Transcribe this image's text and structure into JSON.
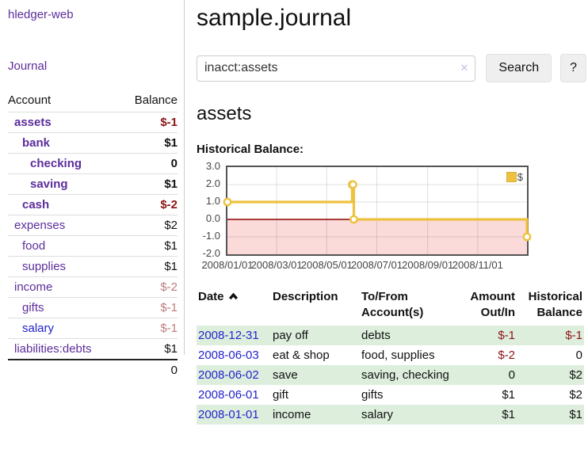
{
  "colors": {
    "link_purple": "#5c2d9c",
    "link_blue": "#2323cc",
    "negative_strong": "#8b1515",
    "negative_soft": "#bd7b7b",
    "row_green": "#ddeedd",
    "chart_line": "#edc240",
    "chart_zero_line": "#8b0000",
    "chart_negative_fill": "#fbdada",
    "chart_border": "#545454"
  },
  "brand": {
    "label": "hledger-web"
  },
  "nav": {
    "journal": "Journal"
  },
  "sidebar": {
    "headers": {
      "account": "Account",
      "balance": "Balance"
    },
    "accounts": [
      {
        "name": "assets",
        "balance": "$-1",
        "indent": 1,
        "bold": true,
        "name_color": "purple",
        "balance_color": "negative_strong"
      },
      {
        "name": "bank",
        "balance": "$1",
        "indent": 2,
        "bold": true,
        "name_color": "purple",
        "balance_color": "normal"
      },
      {
        "name": "checking",
        "balance": "0",
        "indent": 3,
        "bold": true,
        "name_color": "purple",
        "balance_color": "normal"
      },
      {
        "name": "saving",
        "balance": "$1",
        "indent": 3,
        "bold": true,
        "name_color": "purple",
        "balance_color": "normal"
      },
      {
        "name": "cash",
        "balance": "$-2",
        "indent": 2,
        "bold": true,
        "name_color": "purple",
        "balance_color": "negative_strong"
      },
      {
        "name": "expenses",
        "balance": "$2",
        "indent": 1,
        "bold": false,
        "name_color": "purple",
        "balance_color": "normal"
      },
      {
        "name": "food",
        "balance": "$1",
        "indent": 2,
        "bold": false,
        "name_color": "purple",
        "balance_color": "normal"
      },
      {
        "name": "supplies",
        "balance": "$1",
        "indent": 2,
        "bold": false,
        "name_color": "purple",
        "balance_color": "normal"
      },
      {
        "name": "income",
        "balance": "$-2",
        "indent": 1,
        "bold": false,
        "name_color": "purple",
        "balance_color": "negative_soft"
      },
      {
        "name": "gifts",
        "balance": "$-1",
        "indent": 2,
        "bold": false,
        "name_color": "purple",
        "balance_color": "negative_soft"
      },
      {
        "name": "salary",
        "balance": "$-1",
        "indent": 2,
        "bold": false,
        "name_color": "blue",
        "balance_color": "negative_soft"
      },
      {
        "name": "liabilities:debts",
        "balance": "$1",
        "indent": 1,
        "bold": false,
        "name_color": "purple",
        "balance_color": "normal"
      }
    ],
    "total": "0"
  },
  "main": {
    "title": "sample.journal",
    "search": {
      "value": "inacct:assets",
      "clear": "✕",
      "button": "Search",
      "help": "?"
    },
    "account_heading": "assets",
    "section_heading": "Historical Balance:"
  },
  "chart_data": {
    "type": "line",
    "mode": "steps",
    "title": "Historical Balance of assets",
    "series": [
      {
        "name": "$",
        "color": "#edc240",
        "points": [
          [
            "2008-01-01",
            1
          ],
          [
            "2008-06-01",
            2
          ],
          [
            "2008-06-02",
            2
          ],
          [
            "2008-06-03",
            0
          ],
          [
            "2008-12-31",
            -1
          ]
        ]
      }
    ],
    "x_range": [
      "2008-01-01",
      "2008-12-31"
    ],
    "x_ticks": [
      "2008/01/01",
      "2008/03/01",
      "2008/05/01",
      "2008/07/01",
      "2008/09/01",
      "2008/11/01"
    ],
    "y_ticks": [
      3.0,
      2.0,
      1.0,
      0.0,
      -1.0,
      -2.0
    ],
    "y_tick_labels": [
      "3.0",
      "2.0",
      "1.0",
      "0.0",
      "-1.0",
      "-2.0"
    ],
    "ylim": [
      -2,
      3
    ],
    "legend": {
      "label": "$",
      "position": "top-right"
    },
    "grid": true,
    "negative_region_shaded": true
  },
  "register": {
    "headers": {
      "date": "Date",
      "description": "Description",
      "accounts": "To/From Account(s)",
      "amount": "Amount Out/In",
      "balance": "Historical Balance"
    },
    "sort": {
      "column": "Date",
      "direction": "asc"
    },
    "rows": [
      {
        "date": "2008-12-31",
        "description": "pay off",
        "accounts": "debts",
        "amount": "$-1",
        "amount_negative": true,
        "balance": "$-1",
        "balance_negative": true
      },
      {
        "date": "2008-06-03",
        "description": "eat & shop",
        "accounts": "food, supplies",
        "amount": "$-2",
        "amount_negative": true,
        "balance": "0",
        "balance_negative": false
      },
      {
        "date": "2008-06-02",
        "description": "save",
        "accounts": "saving, checking",
        "amount": "0",
        "amount_negative": false,
        "balance": "$2",
        "balance_negative": false
      },
      {
        "date": "2008-06-01",
        "description": "gift",
        "accounts": "gifts",
        "amount": "$1",
        "amount_negative": false,
        "balance": "$2",
        "balance_negative": false
      },
      {
        "date": "2008-01-01",
        "description": "income",
        "accounts": "salary",
        "amount": "$1",
        "amount_negative": false,
        "balance": "$1",
        "balance_negative": false
      }
    ]
  }
}
